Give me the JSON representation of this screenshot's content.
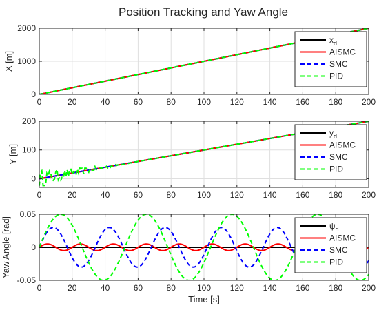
{
  "figure": {
    "title": "Position Tracking and Yaw Angle"
  },
  "colors": {
    "ref": "#000000",
    "aismc": "#ff0000",
    "smc": "#0000ff",
    "pid": "#00ff00",
    "grid": "#dfdfdf",
    "axis": "#262626"
  },
  "chart_data": [
    {
      "type": "line",
      "ylabel": "X [m]",
      "xlabel": "",
      "xlim": [
        0,
        200
      ],
      "ylim": [
        0,
        2000
      ],
      "xticks": [
        0,
        20,
        40,
        60,
        80,
        100,
        120,
        140,
        160,
        180,
        200
      ],
      "yticks": [
        0,
        1000,
        2000
      ],
      "grid": true,
      "legend_position": "top-right",
      "legend": [
        {
          "label": "x",
          "sub": "d",
          "style": "solid",
          "color_key": "ref"
        },
        {
          "label": "AISMC",
          "style": "solid",
          "color_key": "aismc"
        },
        {
          "label": "SMC",
          "style": "dashed",
          "color_key": "smc"
        },
        {
          "label": "PID",
          "style": "dashed",
          "color_key": "pid"
        }
      ],
      "series": [
        {
          "name": "xd",
          "x": [
            0,
            200
          ],
          "y": [
            0,
            2000
          ]
        },
        {
          "name": "AISMC",
          "x": [
            0,
            200
          ],
          "y": [
            0,
            2000
          ]
        },
        {
          "name": "SMC",
          "x": [
            0,
            200
          ],
          "y": [
            0,
            2000
          ]
        },
        {
          "name": "PID",
          "x": [
            0,
            200
          ],
          "y": [
            0,
            2000
          ]
        }
      ]
    },
    {
      "type": "line",
      "ylabel": "Y [m]",
      "xlabel": "",
      "xlim": [
        0,
        200
      ],
      "ylim": [
        -30,
        200
      ],
      "xticks": [
        0,
        20,
        40,
        60,
        80,
        100,
        120,
        140,
        160,
        180,
        200
      ],
      "yticks": [
        0,
        100,
        200
      ],
      "grid": true,
      "legend_position": "top-right",
      "legend": [
        {
          "label": "y",
          "sub": "d",
          "style": "solid",
          "color_key": "ref"
        },
        {
          "label": "AISMC",
          "style": "solid",
          "color_key": "aismc"
        },
        {
          "label": "SMC",
          "style": "dashed",
          "color_key": "smc"
        },
        {
          "label": "PID",
          "style": "dashed",
          "color_key": "pid"
        }
      ],
      "series": [
        {
          "name": "yd",
          "x": [
            0,
            200
          ],
          "y": [
            0,
            200
          ]
        },
        {
          "name": "AISMC",
          "x": [
            0,
            200
          ],
          "y": [
            0,
            200
          ]
        },
        {
          "name": "SMC",
          "x": [
            0,
            200
          ],
          "y": [
            0,
            200
          ]
        },
        {
          "name": "PID",
          "x": [
            0,
            200
          ],
          "y": [
            0,
            200
          ],
          "noise_amplitude": 30,
          "noise_decays_by_x": 70
        }
      ]
    },
    {
      "type": "line",
      "ylabel": "Yaw Angle [rad]",
      "xlabel": "Time [s]",
      "xlim": [
        0,
        200
      ],
      "ylim": [
        -0.05,
        0.05
      ],
      "xticks": [
        0,
        20,
        40,
        60,
        80,
        100,
        120,
        140,
        160,
        180,
        200
      ],
      "yticks": [
        -0.05,
        0,
        0.05
      ],
      "ytick_labels": [
        "-0.05",
        "0",
        "0.05"
      ],
      "grid": true,
      "legend_position": "top-right",
      "legend": [
        {
          "label": "ψ",
          "sub": "d",
          "style": "solid",
          "color_key": "ref"
        },
        {
          "label": "AISMC",
          "style": "solid",
          "color_key": "aismc"
        },
        {
          "label": "SMC",
          "style": "dashed",
          "color_key": "smc"
        },
        {
          "label": "PID",
          "style": "dashed",
          "color_key": "pid"
        }
      ],
      "series": [
        {
          "name": "ψd",
          "amplitude": 0,
          "period": 1
        },
        {
          "name": "AISMC",
          "amplitude": 0.005,
          "period": 20
        },
        {
          "name": "SMC",
          "amplitude": 0.03,
          "period": 34
        },
        {
          "name": "PID",
          "amplitude": 0.05,
          "period": 52
        }
      ]
    }
  ]
}
